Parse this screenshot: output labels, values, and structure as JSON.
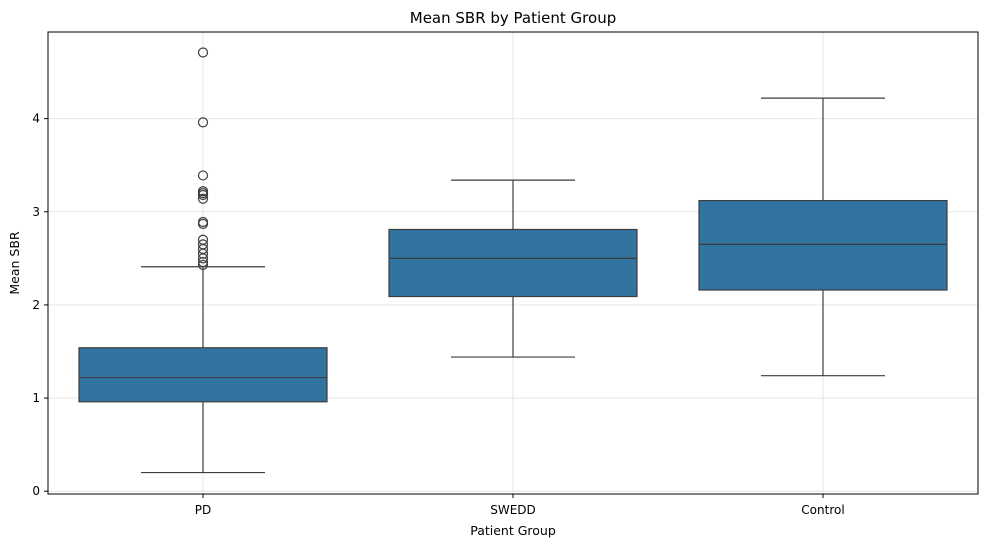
{
  "chart_data": {
    "type": "box",
    "title": "Mean SBR by Patient Group",
    "xlabel": "Patient Group",
    "ylabel": "Mean SBR",
    "ylim": [
      -0.03,
      4.93
    ],
    "yticks": [
      0,
      1,
      2,
      3,
      4
    ],
    "grid": true,
    "box_color": "#3274a1",
    "line_color": "#3d3d3d",
    "categories": [
      "PD",
      "SWEDD",
      "Control"
    ],
    "groups": [
      {
        "category": "PD",
        "whisker_low": 0.2,
        "q1": 0.96,
        "median": 1.22,
        "q3": 1.54,
        "whisker_high": 2.41,
        "outliers": [
          2.43,
          2.46,
          2.5,
          2.55,
          2.6,
          2.65,
          2.7,
          2.87,
          2.89,
          3.14,
          3.18,
          3.2,
          3.22,
          3.39,
          3.96,
          4.71
        ]
      },
      {
        "category": "SWEDD",
        "whisker_low": 1.44,
        "q1": 2.09,
        "median": 2.5,
        "q3": 2.81,
        "whisker_high": 3.34,
        "outliers": []
      },
      {
        "category": "Control",
        "whisker_low": 1.24,
        "q1": 2.16,
        "median": 2.65,
        "q3": 3.12,
        "whisker_high": 4.22,
        "outliers": []
      }
    ]
  }
}
